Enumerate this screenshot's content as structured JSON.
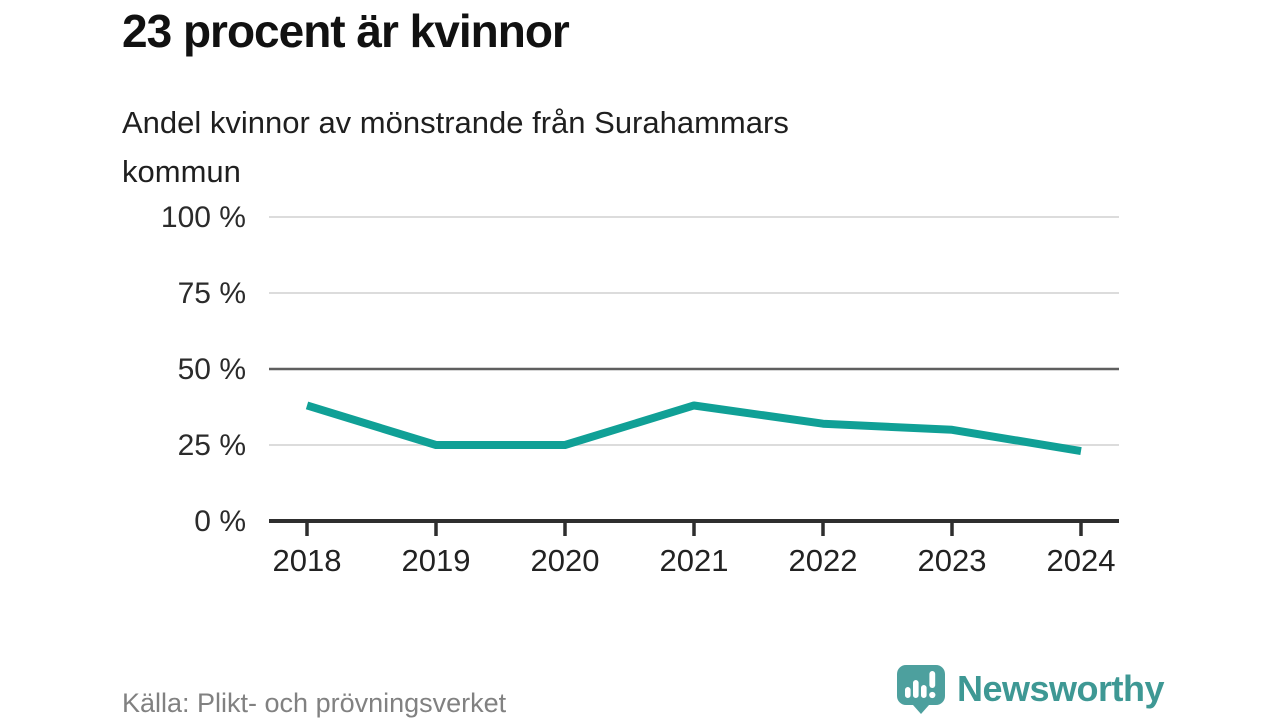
{
  "header": {
    "title": "23 procent är kvinnor",
    "subtitle_lines": [
      "Andel kvinnor av mönstrande från Surahammars",
      "kommun"
    ]
  },
  "chart_data": {
    "type": "line",
    "x": [
      "2018",
      "2019",
      "2020",
      "2021",
      "2022",
      "2023",
      "2024"
    ],
    "series": [
      {
        "name": "Andel kvinnor av mönstrande, Surahammars kommun",
        "values": [
          38,
          25,
          25,
          38,
          32,
          30,
          23
        ]
      }
    ],
    "title": "23 procent är kvinnor",
    "subtitle": "Andel kvinnor av mönstrande från Surahammars kommun",
    "xlabel": "",
    "ylabel": "",
    "ylim": [
      0,
      100
    ],
    "yticks": [
      0,
      25,
      50,
      75,
      100
    ],
    "ytick_labels": [
      "0 %",
      "25 %",
      "50 %",
      "75 %",
      "100 %"
    ],
    "highlight_gridline": 50,
    "grid": true,
    "legend": "none",
    "colors": {
      "line": "#10a096",
      "grid_light": "#dcdcdc",
      "grid_strong": "#5f5f5f",
      "axis": "#2e2e2e",
      "tick_label": "#2b2b2b"
    }
  },
  "footer": {
    "source": "Källa: Plikt- och prövningsverket",
    "brand": "Newsworthy",
    "brand_color": "#3e9894",
    "logo_color": "#4da09e"
  }
}
